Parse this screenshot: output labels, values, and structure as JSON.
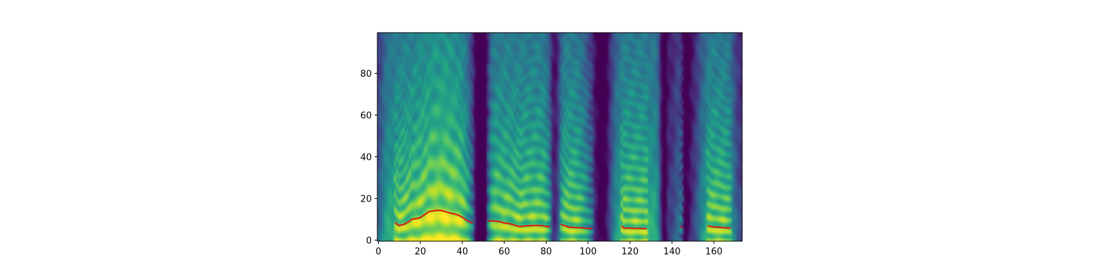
{
  "chart_data": {
    "type": "heatmap",
    "title": "",
    "xlabel": "",
    "ylabel": "",
    "xlim": [
      -0.5,
      173.5
    ],
    "ylim": [
      -0.5,
      99.5
    ],
    "x_ticks": [
      0,
      20,
      40,
      60,
      80,
      100,
      120,
      140,
      160
    ],
    "x_tick_labels": [
      "0",
      "20",
      "40",
      "60",
      "80",
      "100",
      "120",
      "140",
      "160"
    ],
    "y_ticks": [
      0,
      20,
      40,
      60,
      80
    ],
    "y_tick_labels": [
      "0",
      "20",
      "40",
      "60",
      "80"
    ],
    "colormap": "viridis",
    "colormap_colors": [
      "#440154",
      "#482878",
      "#3e4989",
      "#31688e",
      "#26828e",
      "#1f9e89",
      "#35b779",
      "#6ece58",
      "#b5de2b",
      "#fde725"
    ],
    "heatmap_rows": 100,
    "heatmap_cols": 174,
    "voiced_segments": [
      {
        "x": [
          8,
          9,
          10,
          12,
          14,
          16,
          18,
          20,
          22,
          24,
          26,
          28,
          30,
          32,
          34,
          36,
          38,
          40,
          42,
          44,
          45
        ],
        "y": [
          8.5,
          7.5,
          7,
          7.5,
          8.5,
          10,
          10.3,
          10.8,
          12.2,
          13.6,
          14,
          14.3,
          14.2,
          13.6,
          13,
          12.6,
          12,
          11,
          9.5,
          8.5,
          8.2
        ]
      },
      {
        "x": [
          52,
          54,
          56,
          58,
          60,
          62,
          64,
          66,
          68,
          70,
          72,
          74,
          76,
          78,
          80,
          82
        ],
        "y": [
          9.2,
          9.2,
          9.1,
          8.8,
          8.2,
          8,
          7.5,
          6.8,
          6.5,
          6.8,
          6.9,
          7,
          7,
          6.9,
          6.6,
          6.3
        ]
      },
      {
        "x": [
          87,
          89,
          91,
          94,
          97,
          100,
          102
        ],
        "y": [
          7.6,
          6.8,
          6.2,
          6,
          5.9,
          5.6,
          5.5
        ]
      },
      {
        "x": [
          116,
          117,
          120,
          124,
          128
        ],
        "y": [
          6.8,
          5.8,
          5.7,
          5.6,
          5.5
        ]
      },
      {
        "x": [
          144,
          145
        ],
        "y": [
          6.5,
          5.8
        ]
      },
      {
        "x": [
          157,
          159,
          162,
          165,
          168
        ],
        "y": [
          6.9,
          6.4,
          6.2,
          5.9,
          5.8
        ]
      }
    ],
    "line_color": "#e4120f"
  }
}
